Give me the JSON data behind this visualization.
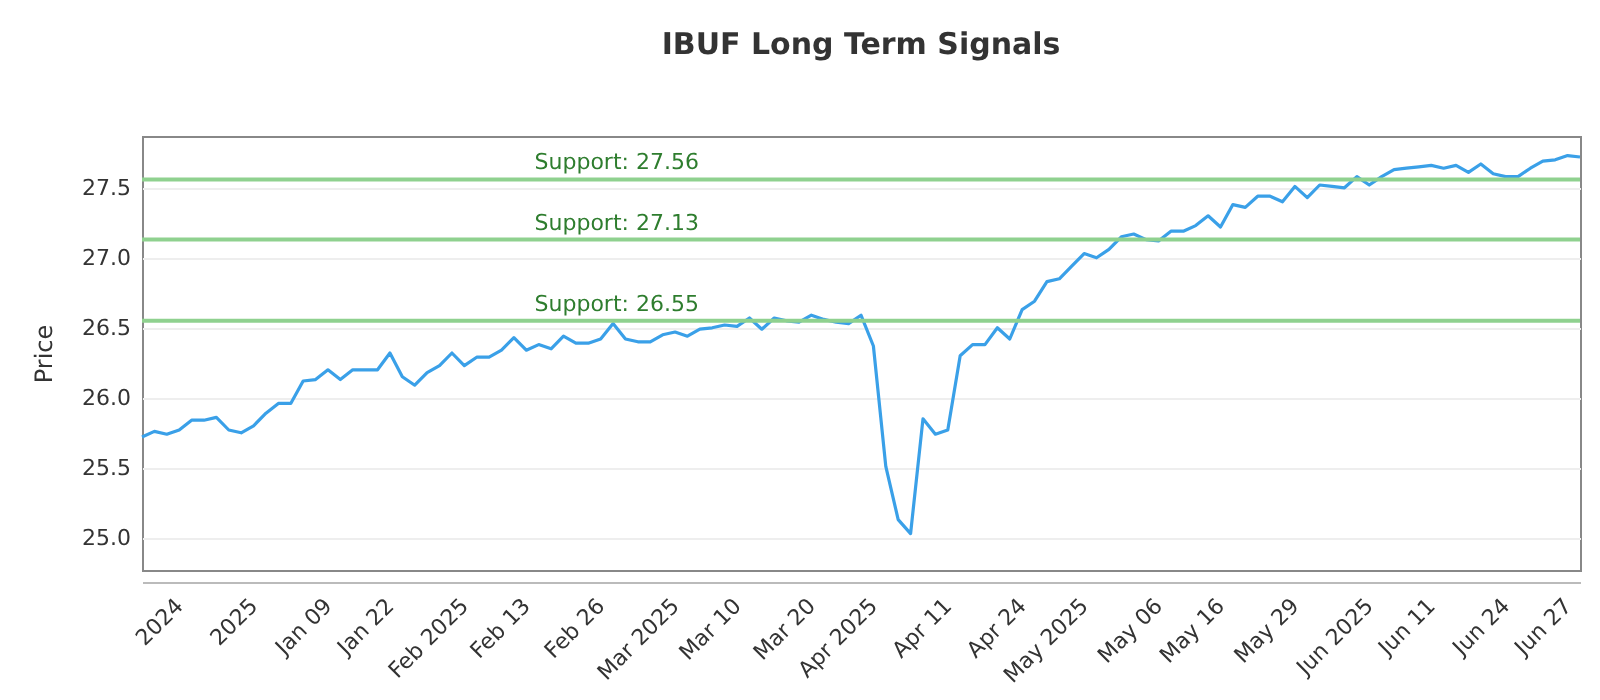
{
  "chart_data": {
    "type": "line",
    "title": "IBUF Long Term Signals",
    "ylabel": "Price",
    "categories": [
      null,
      null,
      null,
      "2024",
      null,
      null,
      null,
      null,
      null,
      "2025",
      null,
      null,
      null,
      null,
      null,
      "Jan 09",
      null,
      null,
      null,
      null,
      "Jan 22",
      null,
      null,
      null,
      null,
      null,
      "Feb 2025",
      null,
      null,
      null,
      null,
      "Feb 13",
      null,
      null,
      null,
      null,
      null,
      "Feb 26",
      null,
      null,
      null,
      null,
      null,
      "Mar 2025",
      null,
      null,
      null,
      null,
      "Mar 10",
      null,
      null,
      null,
      null,
      null,
      "Mar 20",
      null,
      null,
      null,
      null,
      "Apr 2025",
      null,
      null,
      null,
      null,
      null,
      "Apr 11",
      null,
      null,
      null,
      null,
      null,
      "Apr 24",
      null,
      null,
      null,
      null,
      "May 2025",
      null,
      null,
      null,
      null,
      null,
      "May 06",
      null,
      null,
      null,
      null,
      "May 16",
      null,
      null,
      null,
      null,
      null,
      "May 29",
      null,
      null,
      null,
      null,
      null,
      "Jun 2025",
      null,
      null,
      null,
      null,
      "Jun 11",
      null,
      null,
      null,
      null,
      null,
      "Jun 24",
      null,
      null,
      null,
      null,
      "Jun 27",
      null
    ],
    "series": [
      {
        "color": "#3aa0e8",
        "values": [
          25.72,
          25.76,
          25.74,
          25.77,
          25.84,
          25.84,
          25.86,
          25.77,
          25.75,
          25.8,
          25.89,
          25.96,
          25.96,
          26.12,
          26.13,
          26.2,
          26.13,
          26.2,
          26.2,
          26.2,
          26.32,
          26.15,
          26.09,
          26.18,
          26.23,
          26.32,
          26.23,
          26.29,
          26.29,
          26.34,
          26.43,
          26.34,
          26.38,
          26.35,
          26.44,
          26.39,
          26.39,
          26.42,
          26.53,
          26.42,
          26.4,
          26.4,
          26.45,
          26.47,
          26.44,
          26.49,
          26.5,
          26.52,
          26.51,
          26.57,
          26.49,
          26.57,
          26.55,
          26.54,
          26.59,
          26.56,
          26.54,
          26.53,
          26.59,
          26.37,
          25.51,
          25.13,
          25.03,
          25.85,
          25.74,
          25.77,
          26.3,
          26.38,
          26.38,
          26.5,
          26.42,
          26.63,
          26.69,
          26.83,
          26.85,
          26.94,
          27.03,
          27.0,
          27.06,
          27.15,
          27.17,
          27.13,
          27.12,
          27.19,
          27.19,
          27.23,
          27.3,
          27.22,
          27.38,
          27.36,
          27.44,
          27.44,
          27.4,
          27.51,
          27.43,
          27.52,
          27.51,
          27.5,
          27.58,
          27.52,
          27.58,
          27.63,
          27.64,
          27.65,
          27.66,
          27.64,
          27.66,
          27.61,
          27.67,
          27.6,
          27.58,
          27.58,
          27.64,
          27.69,
          27.7,
          27.73,
          27.72
        ]
      }
    ],
    "ylim": [
      24.77,
      27.87
    ],
    "yticks": [
      {
        "value": 25,
        "label": "25.0"
      },
      25.5,
      {
        "value": 26,
        "label": "26.0"
      },
      26.5,
      {
        "value": 27,
        "label": "27.0"
      },
      27.5
    ],
    "grid": "y",
    "ref_lines": [
      {
        "axis": "y",
        "value": 27.56,
        "label": "Support: 27.56",
        "color": "#8fd18f"
      },
      {
        "axis": "y",
        "value": 27.13,
        "label": "Support: 27.13",
        "color": "#8fd18f"
      },
      {
        "axis": "y",
        "value": 26.55,
        "label": "Support: 26.55",
        "color": "#8fd18f"
      }
    ]
  }
}
